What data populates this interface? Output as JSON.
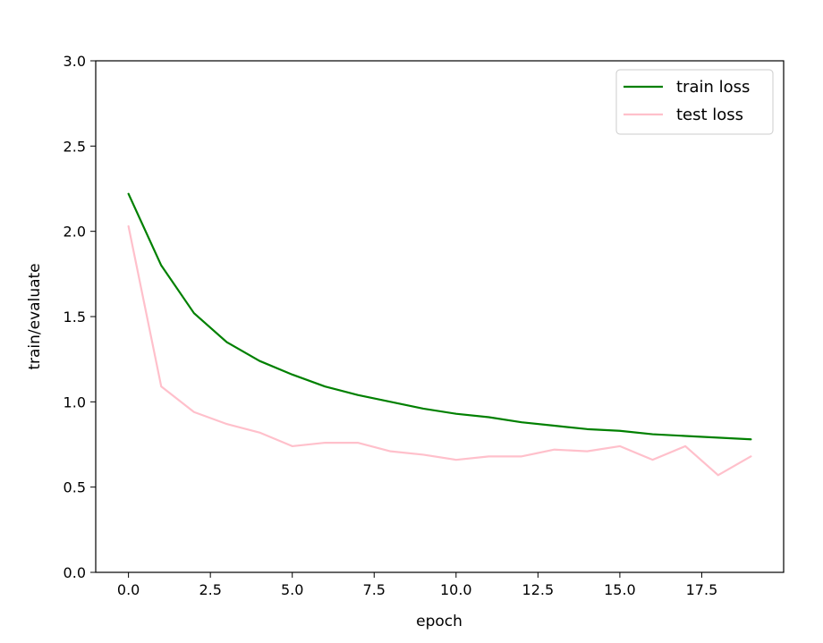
{
  "chart_data": {
    "type": "line",
    "title": "",
    "xlabel": "epoch",
    "ylabel": "train/evaluate",
    "xlim": [
      -1,
      20
    ],
    "ylim": [
      0,
      3
    ],
    "x_ticks": [
      0,
      2.5,
      5,
      7.5,
      10,
      12.5,
      15,
      17.5
    ],
    "x_tick_labels": [
      "0.0",
      "2.5",
      "5.0",
      "7.5",
      "10.0",
      "12.5",
      "15.0",
      "17.5"
    ],
    "y_ticks": [
      0,
      0.5,
      1,
      1.5,
      2,
      2.5,
      3
    ],
    "y_tick_labels": [
      "0.0",
      "0.5",
      "1.0",
      "1.5",
      "2.0",
      "2.5",
      "3.0"
    ],
    "grid": false,
    "legend_position": "top-right",
    "x": [
      0,
      1,
      2,
      3,
      4,
      5,
      6,
      7,
      8,
      9,
      10,
      11,
      12,
      13,
      14,
      15,
      16,
      17,
      18,
      19
    ],
    "series": [
      {
        "name": "train loss",
        "color": "#008000",
        "values": [
          2.22,
          1.8,
          1.52,
          1.35,
          1.24,
          1.16,
          1.09,
          1.04,
          1.0,
          0.96,
          0.93,
          0.91,
          0.88,
          0.86,
          0.84,
          0.83,
          0.81,
          0.8,
          0.79,
          0.78
        ]
      },
      {
        "name": "test loss",
        "color": "#ffc0cb",
        "values": [
          2.03,
          1.09,
          0.94,
          0.87,
          0.82,
          0.74,
          0.76,
          0.76,
          0.71,
          0.69,
          0.66,
          0.68,
          0.68,
          0.72,
          0.71,
          0.74,
          0.66,
          0.74,
          0.57,
          0.68
        ]
      }
    ]
  }
}
